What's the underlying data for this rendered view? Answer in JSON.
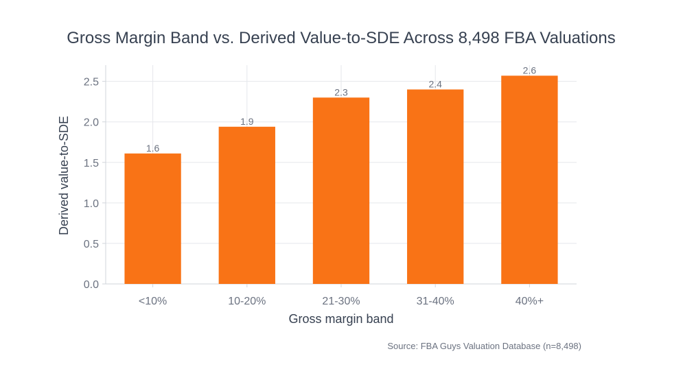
{
  "chart_data": {
    "type": "bar",
    "title": "Gross Margin Band vs. Derived Value-to-SDE Across 8,498 FBA Valuations",
    "xlabel": "Gross margin band",
    "ylabel": "Derived value-to-SDE",
    "categories": [
      "<10%",
      "10-20%",
      "21-30%",
      "31-40%",
      "40%+"
    ],
    "values": [
      1.61,
      1.94,
      2.3,
      2.4,
      2.57
    ],
    "data_labels": [
      "1.6",
      "1.9",
      "2.3",
      "2.4",
      "2.6"
    ],
    "ylim": [
      0,
      2.7
    ],
    "yticks": [
      0.0,
      0.5,
      1.0,
      1.5,
      2.0,
      2.5
    ],
    "ytick_labels": [
      "0.0",
      "0.5",
      "1.0",
      "1.5",
      "2.0",
      "2.5"
    ],
    "grid": true,
    "bar_color": "#f97316",
    "source": "Source: FBA Guys Valuation Database (n=8,498)"
  }
}
